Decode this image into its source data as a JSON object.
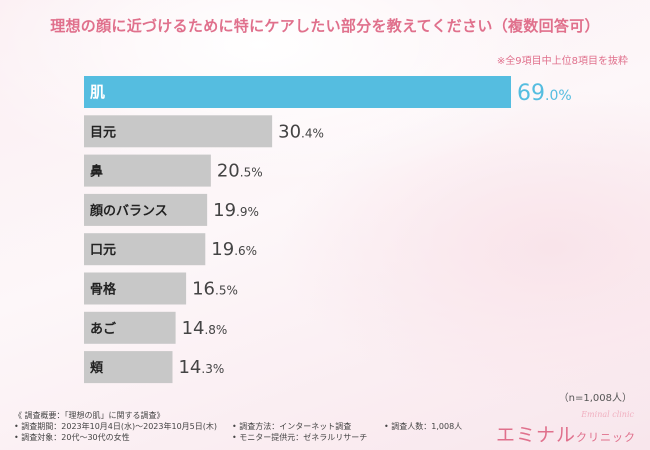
{
  "title": "理想の顔に近づけるために特にケアしたい部分を教えてください（複数回答可）",
  "note": "※全9項目中上位8項目を抜粋",
  "chart_data": {
    "type": "bar",
    "orientation": "horizontal",
    "categories": [
      "肌",
      "目元",
      "鼻",
      "顔のバランス",
      "口元",
      "骨格",
      "あご",
      "頬"
    ],
    "values": [
      69.0,
      30.4,
      20.5,
      19.9,
      19.6,
      16.5,
      14.8,
      14.3
    ],
    "value_labels": [
      "69.0%",
      "30.4%",
      "20.5%",
      "19.9%",
      "19.6%",
      "16.5%",
      "14.8%",
      "14.3%"
    ],
    "xlim": [
      0,
      100
    ],
    "highlight_index": 0,
    "colors": {
      "highlight": "#55bde0",
      "default": "#c8c8c8",
      "highlight_text": "#55bde0",
      "default_text": "#444444",
      "bar_label": "#222222",
      "highlight_label": "#ffffff"
    }
  },
  "sample": "（n=1,008人）",
  "footer": {
    "heading": "《 調査概要：「理想の肌」に関する調査》",
    "items": [
      "• 調査期間：2023年10月4日(水)～2023年10月5日(木)",
      "• 調査方法：インターネット調査",
      "• 調査人数：1,008人",
      "• 調査対象：20代～30代の女性",
      "• モニター提供元：ゼネラルリサーチ"
    ]
  },
  "logo": {
    "main": "エミナル",
    "sub": "クリニック",
    "script": "Eminal clinic"
  }
}
